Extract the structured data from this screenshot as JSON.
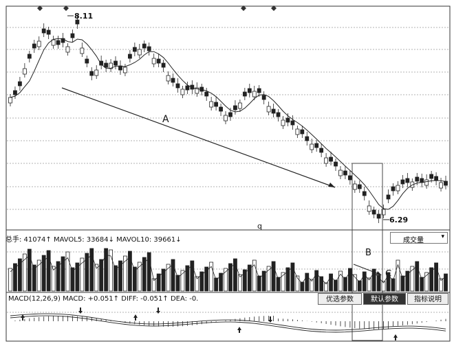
{
  "price_chart": {
    "high_label": "8.11",
    "low_label": "6.29",
    "mark_A": "A",
    "mark_q": "q",
    "mark_B": "B",
    "mark_C": "C"
  },
  "volume_info": {
    "total_label": "总手: 41074↑",
    "mavol5": "MAVOL5: 33684↓",
    "mavol10": "MAVOL10: 39661↓"
  },
  "volume_select": {
    "value": "成交量",
    "arrow": "▾"
  },
  "macd_info": {
    "name": "MACD(12,26,9)",
    "macd": "MACD: +0.051↑",
    "diff": "DIFF: -0.051↑",
    "dea": "DEA: -0."
  },
  "tabs": [
    {
      "label": "优选参数"
    },
    {
      "label": "默认参数"
    },
    {
      "label": "指标说明"
    }
  ],
  "colors": {
    "line": "#222222",
    "frame": "#333333",
    "bg": "#ffffff"
  }
}
